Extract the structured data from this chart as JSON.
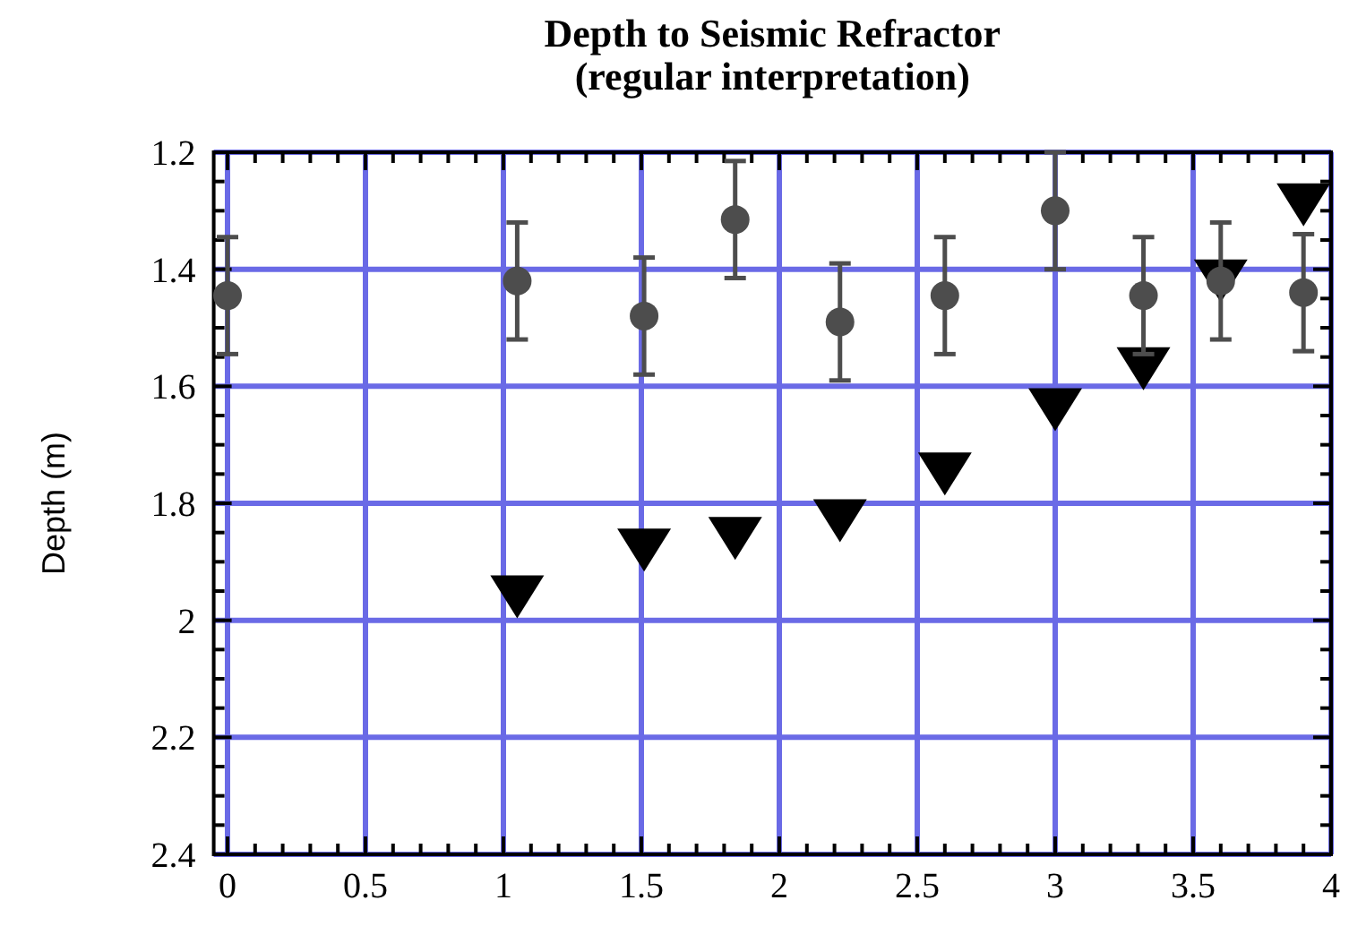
{
  "chart_data": {
    "type": "scatter",
    "title": "Depth to Seismic Refractor\n(regular interpretation)",
    "ylabel": "Depth (m)",
    "xlim": [
      -0.05,
      4
    ],
    "xticks": [
      0,
      0.5,
      1,
      1.5,
      2,
      2.5,
      3,
      3.5,
      4
    ],
    "ylim": [
      2.4,
      1.2
    ],
    "yticks": [
      1.2,
      1.4,
      1.6,
      1.8,
      2,
      2.2,
      2.4
    ],
    "grid": true,
    "series": [
      {
        "color": "#4d4d4d",
        "marker": "circle",
        "x": [
          0,
          1.05,
          1.51,
          1.84,
          2.22,
          2.6,
          3.0,
          3.32,
          3.6,
          3.9
        ],
        "values": [
          1.445,
          1.42,
          1.48,
          1.315,
          1.49,
          1.445,
          1.3,
          1.445,
          1.42,
          1.44
        ],
        "errors": [
          0.1,
          0.1,
          0.1,
          0.1,
          0.1,
          0.1,
          0.1,
          0.1,
          0.1,
          0.1
        ]
      },
      {
        "color": "#000000",
        "marker": "triangle",
        "x": [
          1.05,
          1.51,
          1.84,
          2.22,
          2.6,
          3.0,
          3.32,
          3.6,
          3.9
        ],
        "values": [
          1.96,
          1.88,
          1.86,
          1.83,
          1.75,
          1.64,
          1.57,
          1.42,
          1.29
        ]
      }
    ]
  }
}
